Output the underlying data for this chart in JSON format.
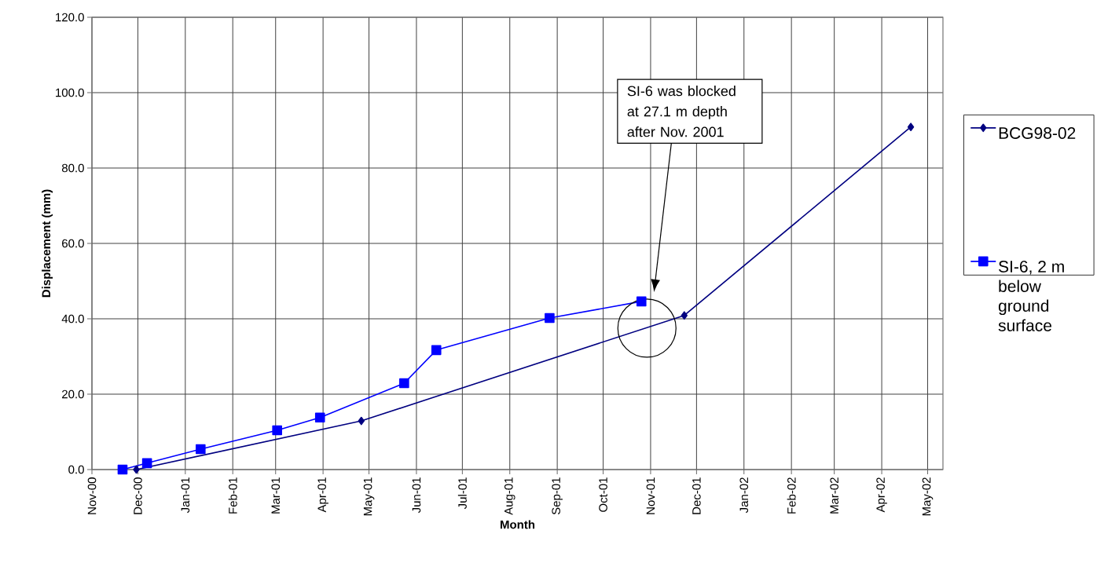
{
  "chart_data": {
    "type": "line",
    "xlabel": "Month",
    "ylabel": "Displacement (mm)",
    "series": [
      {
        "name": "BCG98-02",
        "color": "#000080",
        "marker": "diamond",
        "x": [
          "2000-11-30",
          "2001-04-26",
          "2001-11-23",
          "2002-04-20"
        ],
        "values": [
          0.0,
          12.9,
          40.9,
          90.9
        ]
      },
      {
        "name": "SI-6, 2 m below ground surface",
        "color": "#0000ff",
        "marker": "square",
        "x": [
          "2000-11-21",
          "2000-12-07",
          "2001-01-11",
          "2001-03-02",
          "2001-03-30",
          "2001-05-24",
          "2001-06-14",
          "2001-08-27",
          "2001-10-26"
        ],
        "values": [
          0.0,
          1.7,
          5.4,
          10.4,
          13.8,
          22.9,
          31.7,
          40.2,
          44.6
        ]
      }
    ],
    "xlim": [
      "2000-11-01",
      "2002-05-11"
    ],
    "xticks": [
      {
        "value": "2000-11-01",
        "label": "Nov-00"
      },
      {
        "value": "2000-12-01",
        "label": "Dec-00"
      },
      {
        "value": "2001-01-01",
        "label": "Jan-01"
      },
      {
        "value": "2001-02-01",
        "label": "Feb-01"
      },
      {
        "value": "2001-03-01",
        "label": "Mar-01"
      },
      {
        "value": "2001-04-01",
        "label": "Apr-01"
      },
      {
        "value": "2001-05-01",
        "label": "May-01"
      },
      {
        "value": "2001-06-01",
        "label": "Jun-01"
      },
      {
        "value": "2001-07-01",
        "label": "Jul-01"
      },
      {
        "value": "2001-08-01",
        "label": "Aug-01"
      },
      {
        "value": "2001-09-01",
        "label": "Sep-01"
      },
      {
        "value": "2001-10-01",
        "label": "Oct-01"
      },
      {
        "value": "2001-11-01",
        "label": "Nov-01"
      },
      {
        "value": "2001-12-01",
        "label": "Dec-01"
      },
      {
        "value": "2002-01-01",
        "label": "Jan-02"
      },
      {
        "value": "2002-02-01",
        "label": "Feb-02"
      },
      {
        "value": "2002-03-01",
        "label": "Mar-02"
      },
      {
        "value": "2002-04-01",
        "label": "Apr-02"
      },
      {
        "value": "2002-05-01",
        "label": "May-02"
      }
    ],
    "ylim": [
      0,
      120
    ],
    "yticks": [
      {
        "value": 0,
        "label": "0.0"
      },
      {
        "value": 20,
        "label": "20.0"
      },
      {
        "value": 40,
        "label": "40.0"
      },
      {
        "value": 60,
        "label": "60.0"
      },
      {
        "value": 80,
        "label": "80.0"
      },
      {
        "value": 100,
        "label": "100.0"
      },
      {
        "value": 120,
        "label": "120.0"
      }
    ],
    "grid": true,
    "legend": "right",
    "line_style": "solid",
    "annotations": [
      "SI-6 was blocked at 27.1 m depth after Nov. 2001"
    ]
  }
}
